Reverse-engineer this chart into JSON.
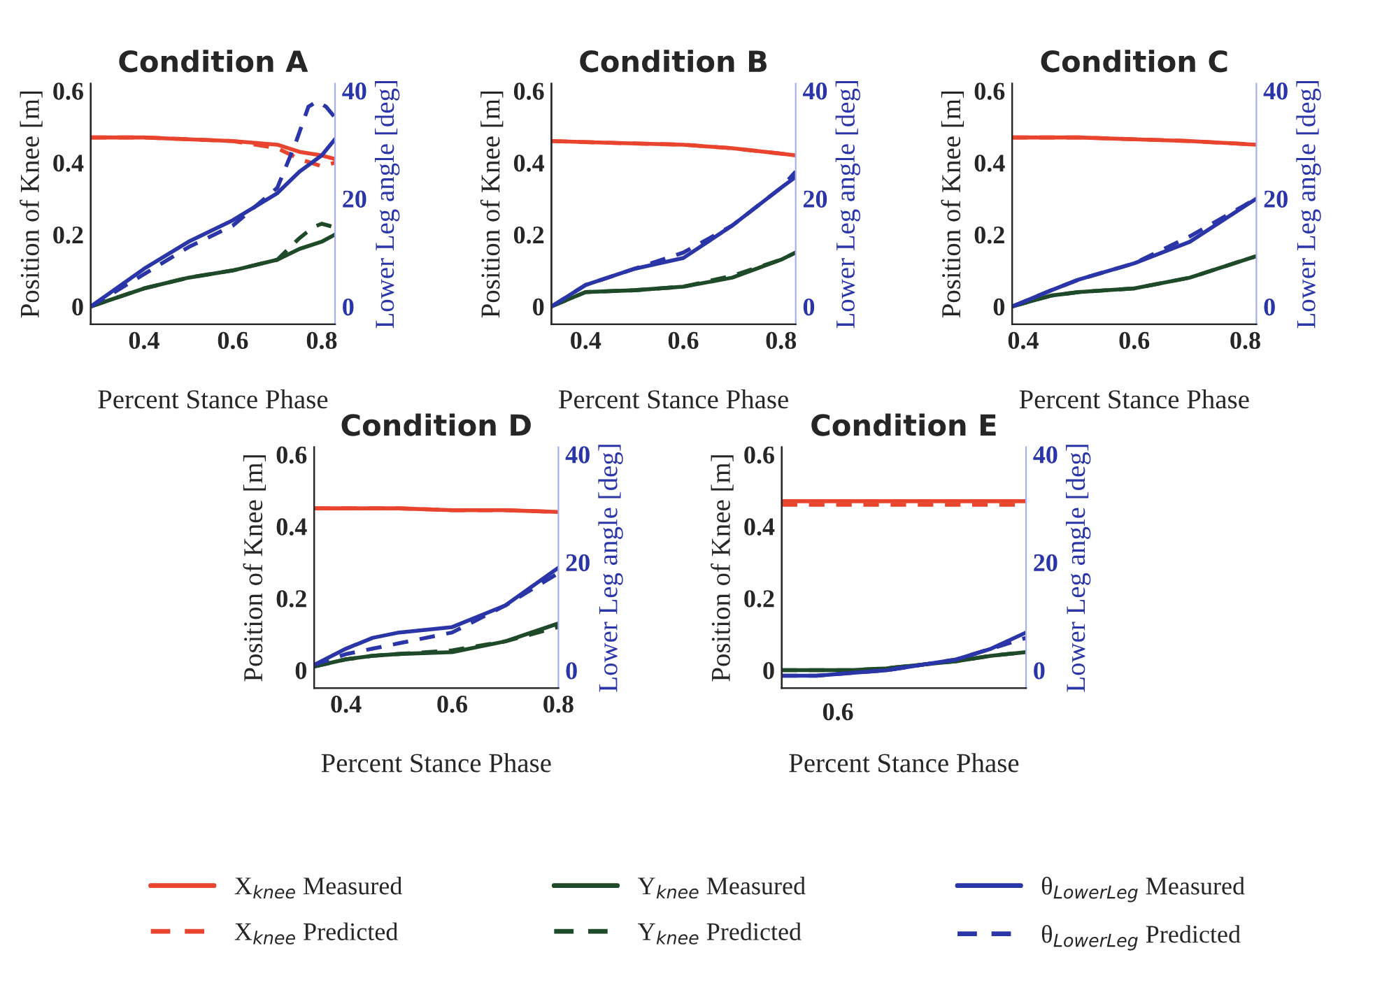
{
  "chart_data": [
    {
      "type": "line",
      "title": "Condition A",
      "xlabel": "Percent Stance Phase",
      "ylabel": "Position of Knee [m]",
      "y2label": "Lower Leg angle [deg]",
      "xlim": [
        0.28,
        0.83
      ],
      "xticks": [
        0.4,
        0.6,
        0.8
      ],
      "ylim": [
        -0.05,
        0.62
      ],
      "yticks": [
        0,
        0.2,
        0.4,
        0.6
      ],
      "y2lim": [
        -3.3,
        41.3
      ],
      "y2ticks": [
        0,
        20,
        40
      ],
      "legend": false,
      "series": [
        {
          "color": "#e8442e",
          "line_style": "solid",
          "x": [
            0.28,
            0.4,
            0.5,
            0.6,
            0.7,
            0.75,
            0.8,
            0.83
          ],
          "values": [
            0.47,
            0.47,
            0.465,
            0.46,
            0.45,
            0.43,
            0.42,
            0.41
          ]
        },
        {
          "color": "#e8442e",
          "line_style": "dashed",
          "x": [
            0.28,
            0.4,
            0.5,
            0.6,
            0.7,
            0.75,
            0.8,
            0.83
          ],
          "values": [
            0.47,
            0.47,
            0.465,
            0.46,
            0.44,
            0.41,
            0.39,
            0.4
          ]
        },
        {
          "color": "#1f4a2a",
          "line_style": "solid",
          "x": [
            0.28,
            0.4,
            0.5,
            0.6,
            0.7,
            0.75,
            0.8,
            0.83
          ],
          "values": [
            0.0,
            0.05,
            0.08,
            0.1,
            0.13,
            0.16,
            0.18,
            0.2
          ]
        },
        {
          "color": "#1f4a2a",
          "line_style": "dashed",
          "x": [
            0.28,
            0.4,
            0.5,
            0.6,
            0.7,
            0.75,
            0.78,
            0.8,
            0.83
          ],
          "values": [
            0.0,
            0.05,
            0.08,
            0.1,
            0.13,
            0.19,
            0.22,
            0.23,
            0.22
          ]
        },
        {
          "color": "#2a35a8",
          "line_style": "solid",
          "axis": "y2",
          "x": [
            0.28,
            0.4,
            0.5,
            0.6,
            0.7,
            0.75,
            0.8,
            0.83
          ],
          "values": [
            0,
            7,
            12,
            16,
            21,
            25,
            28,
            31
          ]
        },
        {
          "color": "#2a35a8",
          "line_style": "dashed",
          "axis": "y2",
          "x": [
            0.28,
            0.4,
            0.5,
            0.6,
            0.7,
            0.74,
            0.77,
            0.79,
            0.81,
            0.83
          ],
          "values": [
            0,
            6,
            11,
            15,
            22,
            30,
            37,
            38,
            37,
            35
          ]
        }
      ]
    },
    {
      "type": "line",
      "title": "Condition B",
      "xlabel": "Percent Stance Phase",
      "ylabel": "Position of Knee [m]",
      "y2label": "Lower Leg angle [deg]",
      "xlim": [
        0.33,
        0.83
      ],
      "xticks": [
        0.4,
        0.6,
        0.8
      ],
      "ylim": [
        -0.05,
        0.62
      ],
      "yticks": [
        0,
        0.2,
        0.4,
        0.6
      ],
      "y2lim": [
        -3.3,
        41.3
      ],
      "y2ticks": [
        0,
        20,
        40
      ],
      "legend": false,
      "series": [
        {
          "color": "#e8442e",
          "line_style": "solid",
          "x": [
            0.33,
            0.45,
            0.6,
            0.7,
            0.8,
            0.83
          ],
          "values": [
            0.46,
            0.455,
            0.45,
            0.44,
            0.425,
            0.42
          ]
        },
        {
          "color": "#e8442e",
          "line_style": "dashed",
          "x": [
            0.33,
            0.45,
            0.6,
            0.7,
            0.8,
            0.83
          ],
          "values": [
            0.46,
            0.455,
            0.45,
            0.44,
            0.425,
            0.42
          ]
        },
        {
          "color": "#1f4a2a",
          "line_style": "solid",
          "x": [
            0.33,
            0.4,
            0.5,
            0.6,
            0.7,
            0.8,
            0.83
          ],
          "values": [
            0.0,
            0.04,
            0.045,
            0.055,
            0.08,
            0.13,
            0.15
          ]
        },
        {
          "color": "#1f4a2a",
          "line_style": "dashed",
          "x": [
            0.33,
            0.4,
            0.5,
            0.6,
            0.7,
            0.8,
            0.83
          ],
          "values": [
            0.0,
            0.04,
            0.045,
            0.055,
            0.085,
            0.13,
            0.15
          ]
        },
        {
          "color": "#2a35a8",
          "line_style": "solid",
          "axis": "y2",
          "x": [
            0.33,
            0.4,
            0.5,
            0.6,
            0.7,
            0.8,
            0.83
          ],
          "values": [
            0,
            4,
            7,
            9,
            15,
            22,
            24
          ]
        },
        {
          "color": "#2a35a8",
          "line_style": "dashed",
          "axis": "y2",
          "x": [
            0.33,
            0.4,
            0.5,
            0.6,
            0.7,
            0.8,
            0.83
          ],
          "values": [
            0,
            4,
            7,
            10,
            15,
            22,
            25
          ]
        }
      ]
    },
    {
      "type": "line",
      "title": "Condition C",
      "xlabel": "Percent Stance Phase",
      "ylabel": "Position of Knee [m]",
      "y2label": "Lower Leg angle [deg]",
      "xlim": [
        0.38,
        0.82
      ],
      "xticks": [
        0.4,
        0.6,
        0.8
      ],
      "ylim": [
        -0.05,
        0.62
      ],
      "yticks": [
        0,
        0.2,
        0.4,
        0.6
      ],
      "y2lim": [
        -3.3,
        41.3
      ],
      "y2ticks": [
        0,
        20,
        40
      ],
      "legend": false,
      "series": [
        {
          "color": "#e8442e",
          "line_style": "solid",
          "x": [
            0.38,
            0.5,
            0.6,
            0.7,
            0.82
          ],
          "values": [
            0.47,
            0.47,
            0.465,
            0.46,
            0.45
          ]
        },
        {
          "color": "#e8442e",
          "line_style": "dashed",
          "x": [
            0.38,
            0.5,
            0.6,
            0.7,
            0.82
          ],
          "values": [
            0.47,
            0.47,
            0.465,
            0.46,
            0.45
          ]
        },
        {
          "color": "#1f4a2a",
          "line_style": "solid",
          "x": [
            0.38,
            0.45,
            0.5,
            0.6,
            0.7,
            0.82
          ],
          "values": [
            0.0,
            0.03,
            0.04,
            0.05,
            0.08,
            0.14
          ]
        },
        {
          "color": "#1f4a2a",
          "line_style": "dashed",
          "x": [
            0.38,
            0.45,
            0.5,
            0.6,
            0.7,
            0.82
          ],
          "values": [
            0.0,
            0.03,
            0.04,
            0.05,
            0.08,
            0.14
          ]
        },
        {
          "color": "#2a35a8",
          "line_style": "solid",
          "axis": "y2",
          "x": [
            0.38,
            0.45,
            0.5,
            0.6,
            0.7,
            0.82
          ],
          "values": [
            0,
            3,
            5,
            8,
            12,
            20
          ]
        },
        {
          "color": "#2a35a8",
          "line_style": "dashed",
          "axis": "y2",
          "x": [
            0.38,
            0.45,
            0.5,
            0.6,
            0.7,
            0.82
          ],
          "values": [
            0,
            3,
            5,
            8,
            13,
            20
          ]
        }
      ]
    },
    {
      "type": "line",
      "title": "Condition D",
      "xlabel": "Percent Stance Phase",
      "ylabel": "Position of Knee [m]",
      "y2label": "Lower Leg angle [deg]",
      "xlim": [
        0.34,
        0.8
      ],
      "xticks": [
        0.4,
        0.6,
        0.8
      ],
      "ylim": [
        -0.05,
        0.62
      ],
      "yticks": [
        0,
        0.2,
        0.4,
        0.6
      ],
      "y2lim": [
        -3.3,
        41.3
      ],
      "y2ticks": [
        0,
        20,
        40
      ],
      "legend": false,
      "series": [
        {
          "color": "#e8442e",
          "line_style": "solid",
          "x": [
            0.34,
            0.5,
            0.6,
            0.7,
            0.8
          ],
          "values": [
            0.45,
            0.45,
            0.445,
            0.445,
            0.44
          ]
        },
        {
          "color": "#e8442e",
          "line_style": "dashed",
          "x": [
            0.34,
            0.5,
            0.6,
            0.7,
            0.8
          ],
          "values": [
            0.45,
            0.45,
            0.445,
            0.445,
            0.44
          ]
        },
        {
          "color": "#1f4a2a",
          "line_style": "solid",
          "x": [
            0.34,
            0.4,
            0.45,
            0.5,
            0.6,
            0.7,
            0.8
          ],
          "values": [
            0.01,
            0.03,
            0.04,
            0.045,
            0.05,
            0.08,
            0.13
          ]
        },
        {
          "color": "#1f4a2a",
          "line_style": "dashed",
          "x": [
            0.34,
            0.4,
            0.45,
            0.5,
            0.6,
            0.7,
            0.8
          ],
          "values": [
            0.01,
            0.03,
            0.04,
            0.045,
            0.055,
            0.08,
            0.12
          ]
        },
        {
          "color": "#2a35a8",
          "line_style": "solid",
          "axis": "y2",
          "x": [
            0.34,
            0.4,
            0.45,
            0.5,
            0.6,
            0.7,
            0.8
          ],
          "values": [
            1,
            4,
            6,
            7,
            8,
            12,
            19
          ]
        },
        {
          "color": "#2a35a8",
          "line_style": "dashed",
          "axis": "y2",
          "x": [
            0.34,
            0.4,
            0.45,
            0.5,
            0.6,
            0.7,
            0.8
          ],
          "values": [
            1,
            3,
            4,
            5,
            7,
            12,
            18
          ]
        }
      ]
    },
    {
      "type": "line",
      "title": "Condition E",
      "xlabel": "Percent Stance Phase",
      "ylabel": "Position of Knee [m]",
      "y2label": "Lower Leg angle [deg]",
      "categories": [
        null,
        null,
        null,
        null,
        null,
        null,
        null,
        null
      ],
      "annotations": [
        "0.6"
      ],
      "ylim": [
        -0.05,
        0.62
      ],
      "yticks": [
        0,
        0.2,
        0.4,
        0.6
      ],
      "y2lim": [
        -3.3,
        41.3
      ],
      "y2ticks": [
        0,
        20,
        40
      ],
      "legend": "bottom",
      "series": [
        {
          "name": "X$_{knee}$ Measured",
          "color": "#e8442e",
          "line_style": "solid",
          "values": [
            0.47,
            0.47,
            0.47,
            0.47,
            0.47,
            0.47,
            0.47,
            0.47
          ]
        },
        {
          "name": "X$_{knee}$ Predicted",
          "color": "#e8442e",
          "line_style": "dashed",
          "values": [
            0.46,
            0.46,
            0.46,
            0.46,
            0.46,
            0.46,
            0.46,
            0.46
          ]
        },
        {
          "name": "Y$_{knee}$ Measured",
          "color": "#1f4a2a",
          "line_style": "solid",
          "values": [
            0.0,
            0.0,
            0.0,
            0.005,
            0.015,
            0.025,
            0.04,
            0.05
          ]
        },
        {
          "name": "Y$_{knee}$ Predicted",
          "color": "#1f4a2a",
          "line_style": "dashed",
          "values": [
            0.0,
            0.0,
            0.0,
            0.005,
            0.015,
            0.025,
            0.04,
            0.05
          ]
        },
        {
          "name": "θ$_{LowerLeg}$ Measured",
          "color": "#2a35a8",
          "line_style": "solid",
          "axis": "y2",
          "values": [
            -1,
            -1,
            -0.5,
            0,
            1,
            2,
            4,
            7
          ]
        },
        {
          "name": "θ$_{LowerLeg}$ Predicted",
          "color": "#2a35a8",
          "line_style": "dashed",
          "axis": "y2",
          "values": [
            -1,
            -1,
            -0.5,
            0,
            1,
            2,
            4,
            6
          ]
        }
      ]
    }
  ]
}
